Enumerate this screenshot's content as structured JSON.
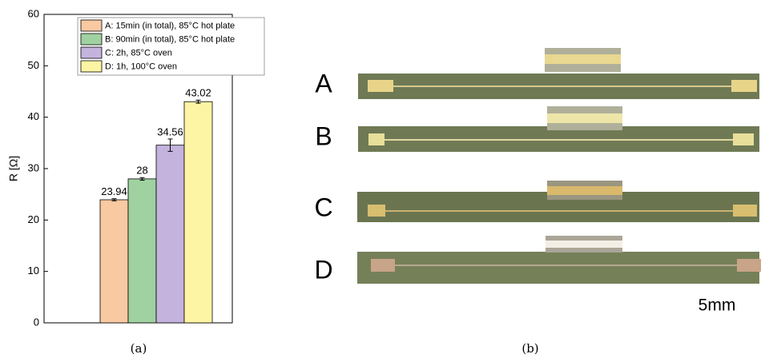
{
  "chart_data": {
    "type": "bar",
    "ylabel": "R [Ω]",
    "series": [
      {
        "name": "A: 15min (in total), 85°C hot plate",
        "color": "#f9c9a1",
        "values": [
          23.94
        ],
        "errors": [
          0.2
        ]
      },
      {
        "name": "B: 90min (in total), 85°C hot plate",
        "color": "#9fd2a0",
        "values": [
          28
        ],
        "errors": [
          0.25
        ]
      },
      {
        "name": "C: 2h, 85°C oven",
        "color": "#c3b3dd",
        "values": [
          34.56
        ],
        "errors": [
          1.2
        ]
      },
      {
        "name": "D: 1h, 100°C oven",
        "color": "#fdf5a3",
        "values": [
          43.02
        ],
        "errors": [
          0.3
        ]
      }
    ],
    "ylim": [
      0,
      60
    ],
    "yticks": [
      0,
      10,
      20,
      30,
      40,
      50,
      60
    ],
    "legend": "top-right",
    "grid": false
  },
  "figure": {
    "caption_a": "(a)",
    "caption_b": "(b)",
    "photo_labels": [
      "A",
      "B",
      "C",
      "D"
    ],
    "scale_label": "5mm"
  }
}
